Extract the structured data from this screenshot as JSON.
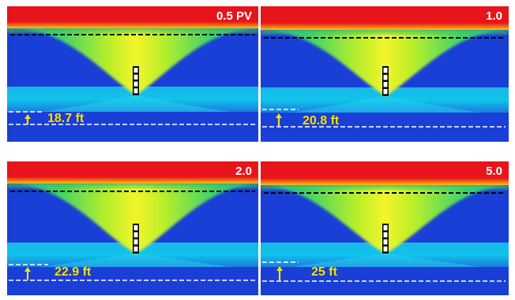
{
  "panels": [
    {
      "pv_label": "0.5 PV",
      "height_label": "18.7 ft"
    },
    {
      "pv_label": "1.0",
      "height_label": "20.8 ft"
    },
    {
      "pv_label": "2.0",
      "height_label": "22.9 ft"
    },
    {
      "pv_label": "5.0",
      "height_label": "25 ft"
    }
  ],
  "colors": {
    "gas_cap": "#e8141b",
    "oil_zone": "#1a3fd6",
    "water_zone": "#10c4ea",
    "cone_core": "#f3f52a",
    "cone_edge": "#3bd26a",
    "gauge_line": "#000000",
    "water_line": "#ffffff",
    "arrow": "#f4e21a"
  }
}
